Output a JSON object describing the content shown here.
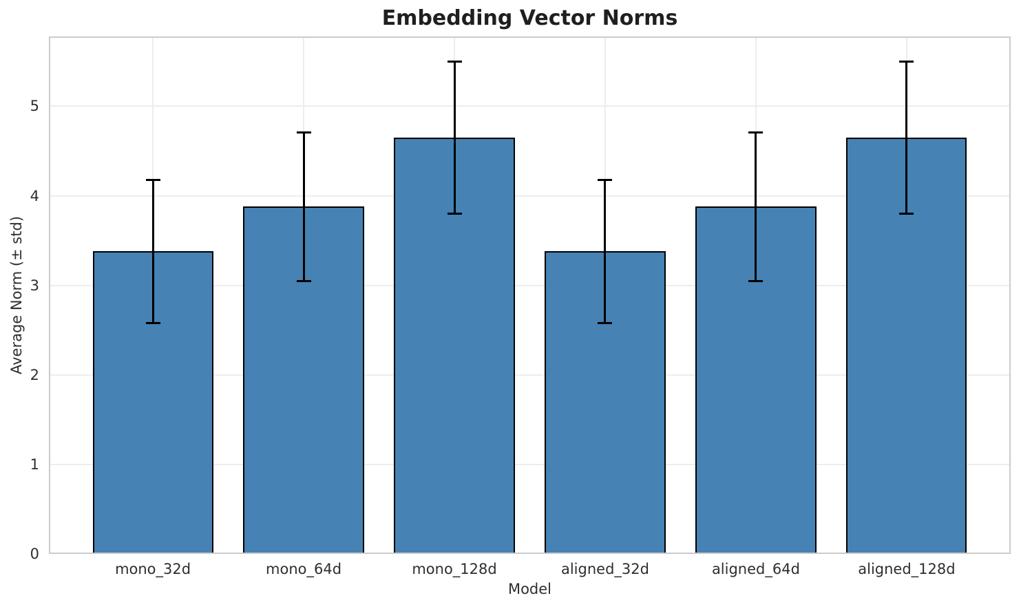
{
  "chart_data": {
    "type": "bar",
    "title": "Embedding Vector Norms",
    "xlabel": "Model",
    "ylabel": "Average Norm (± std)",
    "categories": [
      "mono_32d",
      "mono_64d",
      "mono_128d",
      "aligned_32d",
      "aligned_64d",
      "aligned_128d"
    ],
    "values": [
      3.38,
      3.88,
      4.65,
      3.38,
      3.88,
      4.65
    ],
    "errors": [
      0.8,
      0.83,
      0.85,
      0.8,
      0.83,
      0.85
    ],
    "yticks": [
      0,
      1,
      2,
      3,
      4,
      5
    ],
    "ylim": [
      0,
      5.78
    ],
    "xlim_units": [
      -0.69,
      5.69
    ],
    "bar_width": 0.8,
    "grid": true,
    "legend": "none",
    "colors": {
      "bar_fill": "#4682b4",
      "bar_edge": "#000000",
      "error_bar": "#000000",
      "grid": "#ededed",
      "spine": "#cbcbcb",
      "title_text": "#1f1f1f",
      "tick_text": "#2e2e2e",
      "background": "#ffffff"
    }
  }
}
